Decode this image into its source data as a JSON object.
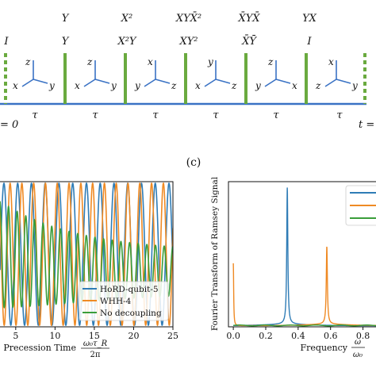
{
  "sequence": {
    "pulse_top_labels": [
      "",
      "Y",
      "X²",
      "XYX̄²",
      "X̄YX̄",
      "YX"
    ],
    "pulse_bottom_labels": [
      "I",
      "Y",
      "X²Y",
      "XY²",
      "X̄Ȳ",
      "I"
    ],
    "tau_label": "τ",
    "start_label": "= 0",
    "end_label": "t =",
    "frames": [
      {
        "up": "z",
        "left": "x",
        "right": "y"
      },
      {
        "up": "z",
        "left": "x",
        "right": "y"
      },
      {
        "up": "x",
        "left": "y",
        "right": "z"
      },
      {
        "up": "y",
        "left": "x",
        "right": "z"
      },
      {
        "up": "z",
        "left": "y",
        "right": "x"
      },
      {
        "up": "x",
        "left": "z",
        "right": "y"
      }
    ],
    "colors": {
      "pulse": "#6aaa3f",
      "timeline": "#3a72c4"
    }
  },
  "panel_label": "(c)",
  "left_plot": {
    "xlabel_text": "Precession Time",
    "xlabel_num": "ω₀τ_R",
    "xlabel_den": "2π",
    "xticks": [
      "5",
      "10",
      "15",
      "20",
      "25"
    ],
    "legend": [
      "HoRD-qubit-5",
      "WHH-4",
      "No decoupling"
    ]
  },
  "right_plot": {
    "ylabel": "Fourier Transform of Ramsey Signal",
    "xlabel_text": "Frequency",
    "xlabel_num": "ω",
    "xlabel_den": "ω₀",
    "xticks": [
      "0.0",
      "0.2",
      "0.4",
      "0.6",
      "0.8"
    ]
  },
  "chart_data": [
    {
      "type": "line",
      "xlim": [
        3,
        25
      ],
      "series": [
        {
          "name": "HoRD-qubit-5",
          "color": "#2f7cb6",
          "amplitude": 1.0,
          "period": 1.75,
          "decay": 0
        },
        {
          "name": "WHH-4",
          "color": "#ef8a24",
          "amplitude": 1.0,
          "period": 1.5,
          "decay": 0
        },
        {
          "name": "No decoupling",
          "color": "#3a9d3a",
          "amplitude": 0.75,
          "period": 1.1,
          "decay": 0.08
        }
      ]
    },
    {
      "type": "line",
      "xlim": [
        -0.03,
        0.9
      ],
      "ylim": [
        0,
        200
      ],
      "series": [
        {
          "name": "",
          "color": "#2f7cb6",
          "peak_x": 0.333,
          "peak_y": 197
        },
        {
          "name": "",
          "color": "#ef8a24",
          "peak_x": 0.577,
          "peak_y": 112,
          "edge_x": 0.0,
          "edge_y": 90
        },
        {
          "name": "",
          "color": "#3a9d3a",
          "peak_x": null,
          "peak_y": 2
        }
      ]
    }
  ]
}
